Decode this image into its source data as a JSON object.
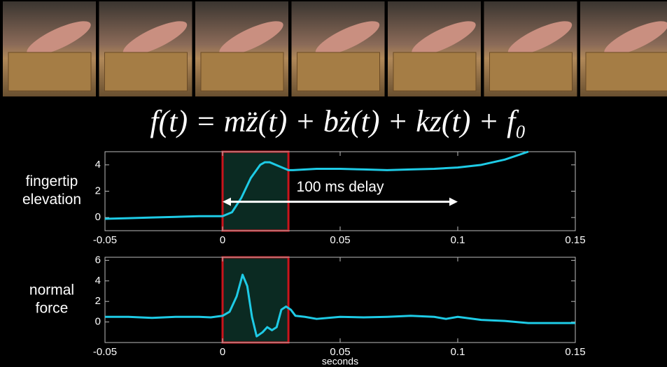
{
  "equation": "f(t) = mz̈(t) + bż(t) + kz(t) + f₀",
  "chart_data": [
    {
      "type": "line",
      "ylabel_lines": [
        "fingertip",
        "elevation"
      ],
      "x": [
        -0.05,
        -0.04,
        -0.03,
        -0.02,
        -0.01,
        0,
        0.004,
        0.008,
        0.012,
        0.016,
        0.018,
        0.02,
        0.024,
        0.028,
        0.03,
        0.04,
        0.05,
        0.06,
        0.07,
        0.08,
        0.09,
        0.1,
        0.11,
        0.12,
        0.13
      ],
      "values": [
        -0.1,
        -0.05,
        0,
        0.05,
        0.1,
        0.1,
        0.4,
        1.5,
        3.0,
        4.0,
        4.2,
        4.2,
        3.9,
        3.6,
        3.6,
        3.7,
        3.7,
        3.65,
        3.6,
        3.65,
        3.7,
        3.8,
        4.0,
        4.4,
        5.0
      ],
      "color": "#1ecbe6",
      "xlim": [
        -0.05,
        0.15
      ],
      "xticks": [
        -0.05,
        0,
        0.05,
        0.1,
        0.15
      ],
      "ylim": [
        -1,
        5
      ],
      "yticks": [
        0,
        2,
        4
      ],
      "highlight": {
        "x": [
          0,
          0.028
        ],
        "color": "#c8141c"
      },
      "annotation": {
        "text": "100 ms delay",
        "x": [
          0,
          0.1
        ],
        "y": 1.2
      }
    },
    {
      "type": "line",
      "ylabel_lines": [
        "normal",
        "force"
      ],
      "xlabel": "seconds",
      "x": [
        -0.05,
        -0.04,
        -0.03,
        -0.02,
        -0.01,
        -0.005,
        0,
        0.003,
        0.006,
        0.0085,
        0.0105,
        0.0125,
        0.0145,
        0.017,
        0.019,
        0.021,
        0.023,
        0.025,
        0.027,
        0.029,
        0.031,
        0.035,
        0.04,
        0.05,
        0.06,
        0.07,
        0.08,
        0.09,
        0.095,
        0.1,
        0.11,
        0.12,
        0.13,
        0.14,
        0.15
      ],
      "values": [
        0.5,
        0.5,
        0.4,
        0.5,
        0.5,
        0.45,
        0.6,
        1.0,
        2.5,
        4.6,
        3.5,
        0.5,
        -1.4,
        -1.0,
        -0.5,
        -0.8,
        -0.5,
        1.2,
        1.5,
        1.2,
        0.6,
        0.5,
        0.3,
        0.5,
        0.45,
        0.5,
        0.6,
        0.5,
        0.3,
        0.5,
        0.2,
        0.1,
        -0.1,
        -0.1,
        -0.1
      ],
      "color": "#1ecbe6",
      "xlim": [
        -0.05,
        0.15
      ],
      "xticks": [
        -0.05,
        0,
        0.05,
        0.1,
        0.15
      ],
      "ylim": [
        -2,
        6.3
      ],
      "yticks": [
        0,
        2,
        4,
        6
      ],
      "highlight": {
        "x": [
          0,
          0.028
        ],
        "color": "#c8141c"
      }
    }
  ]
}
